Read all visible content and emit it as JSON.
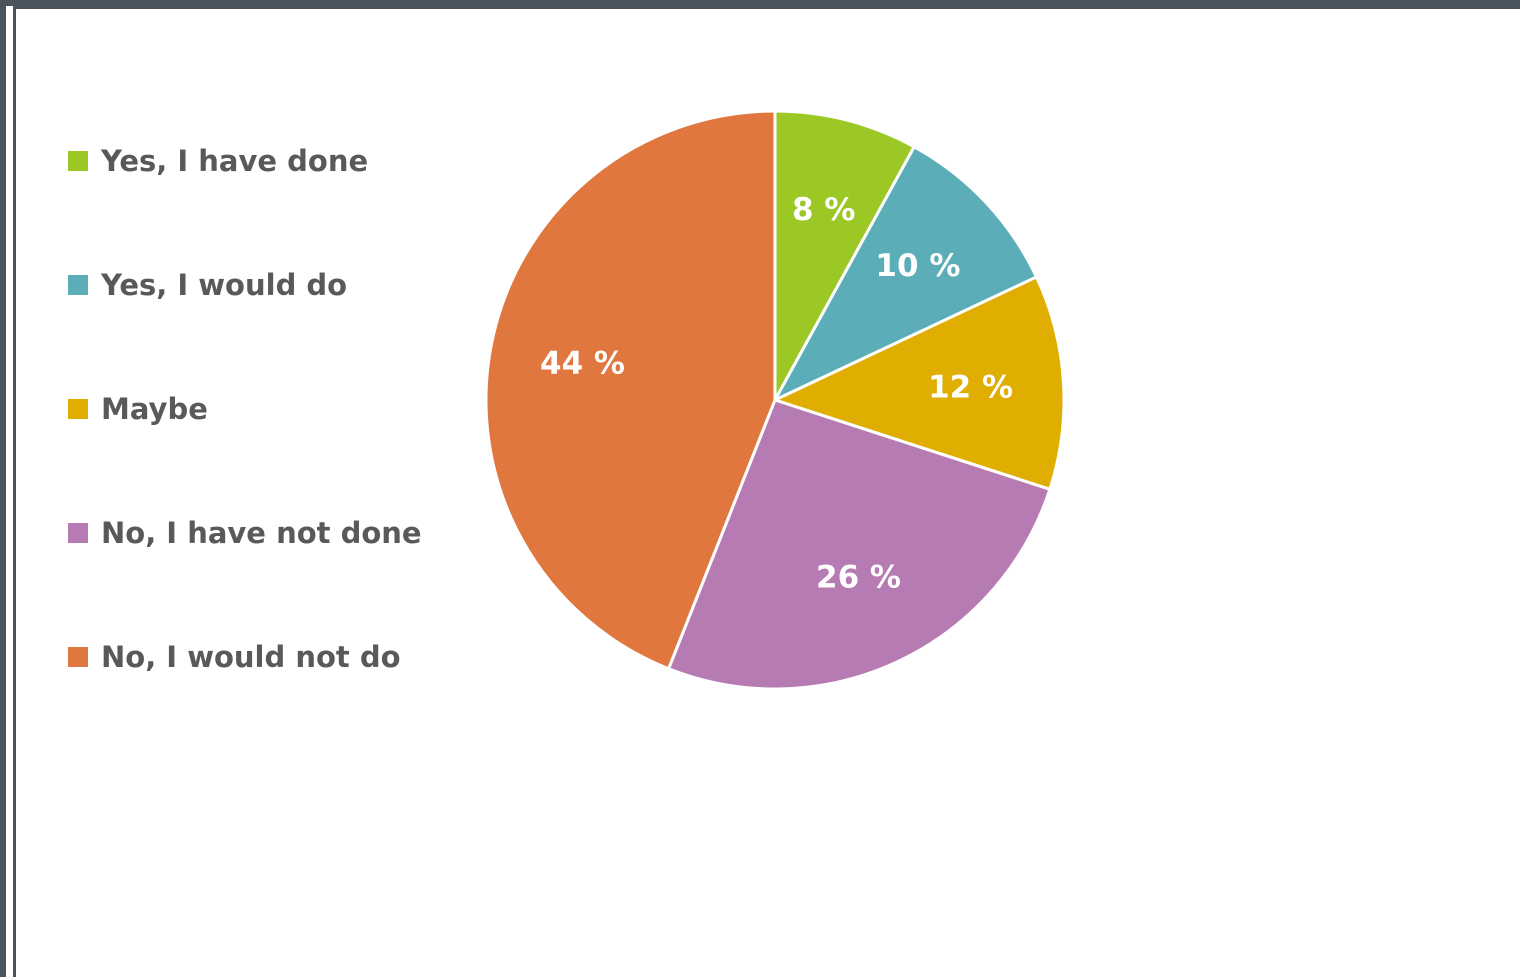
{
  "chart_data": {
    "type": "pie",
    "categories": [
      "Yes, I have done",
      "Yes, I would do",
      "Maybe",
      "No, I have not done",
      "No, I would not do"
    ],
    "values": [
      8,
      10,
      12,
      26,
      44
    ],
    "data_labels": [
      "8 %",
      "10 %",
      "12 %",
      "26 %",
      "44 %"
    ],
    "colors": [
      "#9bc824",
      "#5baeb8",
      "#dfae00",
      "#b77bb4",
      "#e0773f"
    ],
    "legend_position": "left",
    "start_angle": "12 o'clock",
    "direction": "clockwise"
  }
}
